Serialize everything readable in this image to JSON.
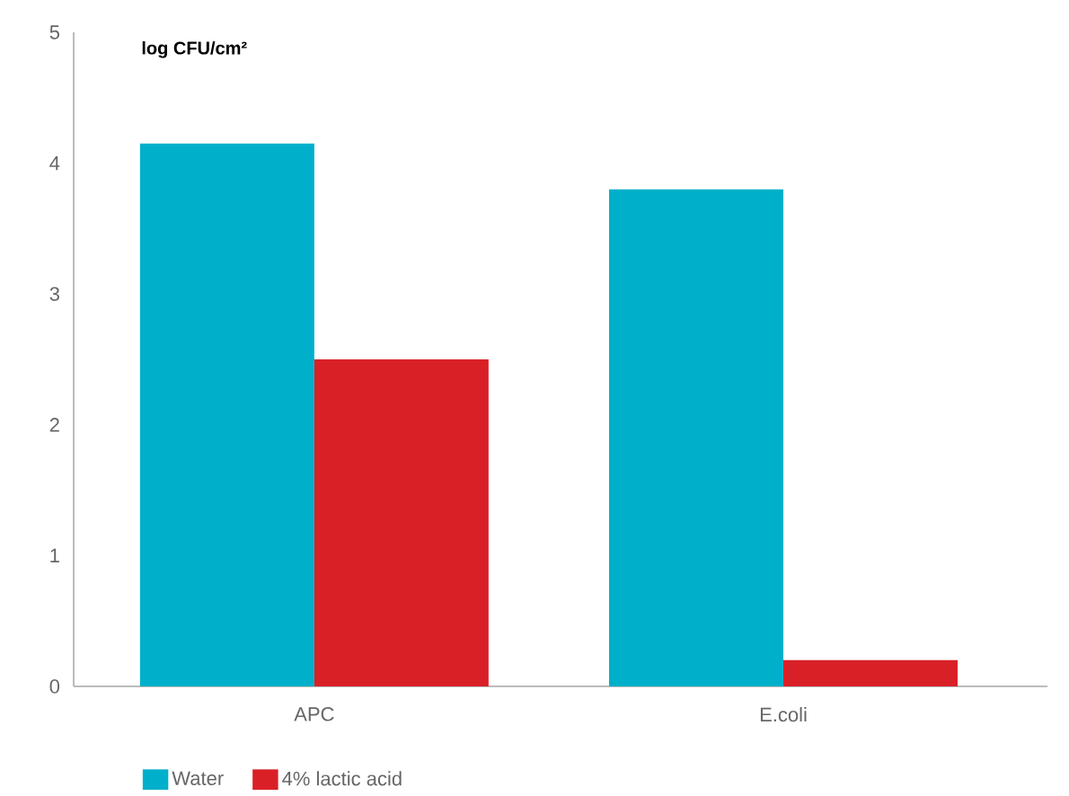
{
  "chart_data": {
    "type": "bar",
    "ylabel": "log CFU/cm²",
    "categories": [
      "APC",
      "E.coli"
    ],
    "series": [
      {
        "name": "Water",
        "color": "#00b0cb",
        "values": [
          4.15,
          3.8
        ]
      },
      {
        "name": "4% lactic acid",
        "color": "#d92027",
        "values": [
          2.5,
          0.2
        ]
      }
    ],
    "ylim": [
      0,
      5
    ],
    "yticks": [
      0,
      1,
      2,
      3,
      4,
      5
    ],
    "grid": false,
    "legend": "bottom"
  }
}
